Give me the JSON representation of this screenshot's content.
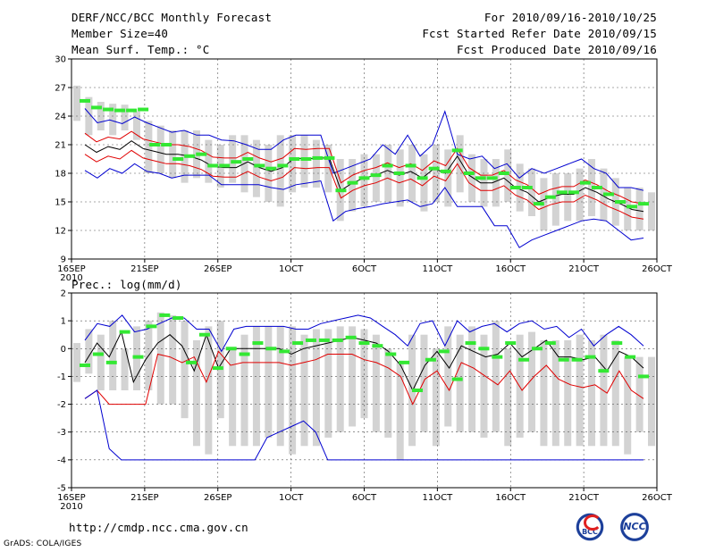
{
  "header": {
    "title": "DERF/NCC/BCC Monthly Forecast",
    "member_size": "Member Size=40",
    "variable": "Mean Surf. Temp.: °C",
    "period": "For 2010/09/16-2010/10/25",
    "refer_date": "Fcst Started Refer Date 2010/09/15",
    "produced_date": "Fcst Produced Date 2010/09/16"
  },
  "panel2_label": "Prec.: log(mm/d)",
  "footer": {
    "url": "http://cmdp.ncc.cma.gov.cn",
    "grads": "GrADS: COLA/IGES",
    "logo_bcc": "BCC",
    "logo_ncc": "NCC"
  },
  "colors": {
    "ensemble_mean": "#000000",
    "spread": "#e00000",
    "extremes": "#0000d0",
    "obs_marker": "#33e833",
    "box": "#d3d3d3",
    "grid": "#555555"
  },
  "chart_data": [
    {
      "type": "line",
      "title": "Mean Surf. Temp.: °C",
      "x_start_day": 1,
      "x_tick_days": [
        1,
        6,
        11,
        16,
        21,
        26,
        31,
        36,
        41
      ],
      "x_tick_labels": [
        "16SEP",
        "21SEP",
        "26SEP",
        "1OCT",
        "6OCT",
        "11OCT",
        "16OCT",
        "21OCT",
        "26OCT"
      ],
      "x_year_label": "2010",
      "ylim": [
        9,
        30
      ],
      "y_ticks": [
        9,
        12,
        15,
        18,
        21,
        24,
        27,
        30
      ],
      "series": [
        {
          "name": "max",
          "values": [
            18.3,
            17.5,
            18.5,
            18.0,
            19.0,
            18.2,
            18.0,
            17.5,
            17.8,
            17.8,
            17.8,
            16.8,
            16.8,
            16.8,
            16.8,
            16.5,
            16.3,
            16.8,
            17.0,
            17.2,
            13.0,
            14.0,
            14.3,
            14.5,
            14.8,
            15.0,
            15.2,
            14.5,
            14.8,
            16.5,
            14.5,
            14.5,
            14.5,
            12.5,
            12.5,
            10.2,
            11.0,
            11.5,
            12.0,
            12.5,
            13.0,
            13.2,
            13.0,
            12.0,
            11.0,
            11.2
          ]
        },
        {
          "name": "max",
          "values": [
            24.8,
            23.3,
            23.6,
            23.2,
            23.9,
            23.3,
            22.8,
            22.3,
            22.5,
            22.0,
            22.0,
            21.5,
            21.4,
            21.0,
            20.5,
            20.5,
            21.5,
            22.0,
            22.0,
            22.0,
            18.0,
            18.5,
            19.0,
            19.5,
            21.0,
            20.0,
            22.0,
            19.8,
            21.0,
            24.5,
            20.0,
            19.5,
            19.8,
            18.5,
            19.0,
            17.5,
            18.5,
            18.0,
            18.5,
            19.0,
            19.5,
            18.5,
            18.0,
            16.5,
            16.5,
            16.2
          ]
        },
        {
          "name": "ensemble mean",
          "values": [
            21.0,
            20.2,
            20.8,
            20.5,
            21.4,
            20.6,
            20.3,
            20.0,
            20.0,
            19.8,
            19.4,
            18.7,
            18.6,
            18.6,
            19.2,
            18.6,
            18.2,
            18.6,
            19.6,
            19.5,
            19.6,
            19.6,
            16.2,
            17.0,
            17.5,
            17.8,
            18.3,
            17.8,
            18.2,
            17.5,
            18.5,
            18.0,
            19.8,
            17.8,
            17.0,
            17.0,
            17.5,
            16.5,
            16.0,
            15.0,
            15.5,
            15.8,
            15.8,
            16.5,
            16.0,
            15.3,
            14.8,
            14.2,
            14.0
          ]
        },
        {
          "name": "upper",
          "values": [
            22.2,
            21.3,
            21.8,
            21.6,
            22.4,
            21.6,
            21.3,
            21.0,
            21.0,
            20.8,
            20.4,
            19.7,
            19.6,
            19.6,
            20.2,
            19.6,
            19.2,
            19.6,
            20.6,
            20.5,
            20.6,
            20.6,
            17.0,
            17.8,
            18.3,
            18.6,
            19.1,
            18.6,
            19.0,
            18.3,
            19.3,
            18.8,
            20.6,
            18.6,
            17.8,
            17.8,
            18.3,
            17.3,
            16.8,
            15.8,
            16.3,
            16.6,
            16.6,
            17.3,
            16.8,
            16.1,
            15.6,
            15.0,
            14.8
          ]
        },
        {
          "name": "lower",
          "values": [
            20.0,
            19.2,
            19.8,
            19.5,
            20.4,
            19.6,
            19.3,
            19.0,
            19.0,
            18.8,
            18.4,
            17.7,
            17.6,
            17.6,
            18.2,
            17.6,
            17.2,
            17.6,
            18.6,
            18.5,
            18.6,
            18.6,
            15.4,
            16.2,
            16.7,
            17.0,
            17.5,
            17.0,
            17.4,
            16.7,
            17.7,
            17.2,
            19.0,
            17.0,
            16.2,
            16.2,
            16.7,
            15.7,
            15.2,
            14.2,
            14.7,
            15.0,
            15.0,
            15.7,
            15.2,
            14.5,
            14.0,
            13.4,
            13.2
          ]
        }
      ],
      "observed_markers": [
        25.6,
        24.9,
        24.7,
        24.6,
        24.6,
        24.7,
        21.0,
        21.0,
        19.5,
        19.8,
        20.0,
        18.8,
        18.8,
        19.2,
        19.5,
        18.8,
        18.5,
        18.8,
        19.5,
        19.5,
        19.6,
        19.6,
        16.2,
        17.0,
        17.5,
        17.8,
        18.8,
        18.0,
        18.8,
        17.5,
        18.5,
        18.2,
        20.4,
        18.0,
        17.5,
        17.5,
        18.0,
        16.5,
        16.5,
        14.8,
        15.5,
        16.0,
        16.0,
        17.0,
        16.5,
        15.8,
        15.0,
        14.5,
        14.8
      ],
      "box_ranges": [
        [
          23.5,
          27.2
        ],
        [
          22.0,
          26.0
        ],
        [
          22.5,
          25.5
        ],
        [
          22.0,
          25.3
        ],
        [
          22.5,
          25.2
        ],
        [
          21.5,
          24.5
        ],
        [
          18.0,
          23.5
        ],
        [
          18.0,
          23.0
        ],
        [
          17.5,
          22.5
        ],
        [
          17.0,
          22.5
        ],
        [
          17.5,
          22.5
        ],
        [
          17.0,
          21.5
        ],
        [
          16.5,
          21.0
        ],
        [
          17.0,
          22.0
        ],
        [
          16.0,
          22.0
        ],
        [
          15.5,
          21.5
        ],
        [
          15.0,
          21.0
        ],
        [
          14.5,
          22.0
        ],
        [
          16.0,
          22.0
        ],
        [
          16.5,
          22.0
        ],
        [
          16.5,
          21.5
        ],
        [
          16.0,
          21.0
        ],
        [
          13.0,
          19.5
        ],
        [
          14.0,
          19.5
        ],
        [
          14.5,
          20.0
        ],
        [
          15.0,
          20.0
        ],
        [
          15.0,
          21.0
        ],
        [
          14.5,
          20.5
        ],
        [
          15.0,
          21.0
        ],
        [
          14.0,
          20.0
        ],
        [
          15.0,
          21.0
        ],
        [
          14.5,
          20.5
        ],
        [
          16.0,
          22.0
        ],
        [
          15.0,
          20.0
        ],
        [
          14.5,
          19.5
        ],
        [
          14.5,
          19.5
        ],
        [
          15.0,
          20.5
        ],
        [
          14.0,
          19.0
        ],
        [
          13.5,
          18.5
        ],
        [
          12.0,
          17.5
        ],
        [
          12.5,
          18.0
        ],
        [
          13.0,
          18.0
        ],
        [
          13.0,
          18.5
        ],
        [
          13.5,
          19.5
        ],
        [
          13.0,
          18.5
        ],
        [
          12.5,
          17.5
        ],
        [
          12.0,
          16.5
        ],
        [
          12.0,
          16.5
        ],
        [
          12.0,
          16.0
        ]
      ]
    },
    {
      "type": "line",
      "title": "Prec.: log(mm/d)",
      "x_start_day": 1,
      "x_tick_days": [
        1,
        6,
        11,
        16,
        21,
        26,
        31,
        36,
        41
      ],
      "x_tick_labels": [
        "16SEP",
        "21SEP",
        "26SEP",
        "1OCT",
        "6OCT",
        "11OCT",
        "16OCT",
        "21OCT",
        "26OCT"
      ],
      "x_year_label": "2010",
      "ylim": [
        -5,
        2
      ],
      "y_ticks": [
        -5,
        -4,
        -3,
        -2,
        -1,
        0,
        1,
        2
      ],
      "series": [
        {
          "name": "max",
          "values": [
            0.3,
            0.9,
            0.8,
            1.2,
            0.6,
            0.7,
            0.9,
            1.1,
            1.1,
            0.7,
            0.7,
            -0.1,
            0.7,
            0.8,
            0.8,
            0.8,
            0.8,
            0.7,
            0.7,
            0.9,
            1.0,
            1.1,
            1.2,
            1.1,
            0.8,
            0.5,
            0.1,
            0.9,
            1.0,
            0.1,
            1.0,
            0.6,
            0.8,
            0.9,
            0.6,
            0.9,
            1.0,
            0.7,
            0.8,
            0.4,
            0.7,
            0.1,
            0.5,
            0.8,
            0.5,
            0.1
          ]
        },
        {
          "name": "ensemble mean",
          "values": [
            -0.5,
            0.2,
            -0.3,
            0.6,
            -1.2,
            -0.4,
            0.2,
            0.5,
            0.1,
            -0.8,
            0.5,
            -0.7,
            0.0,
            0.0,
            0.0,
            0.0,
            0.0,
            -0.2,
            0.0,
            0.1,
            0.2,
            0.3,
            0.4,
            0.3,
            0.2,
            -0.1,
            -0.6,
            -1.5,
            -0.6,
            -0.1,
            -0.7,
            0.1,
            -0.1,
            -0.3,
            -0.2,
            0.2,
            -0.3,
            0.0,
            0.3,
            -0.3,
            -0.3,
            -0.4,
            -0.3,
            -0.8,
            -0.1,
            -0.3,
            -0.7
          ]
        },
        {
          "name": "lower",
          "values": [
            -1.8,
            -1.5,
            -2.0,
            -2.0,
            -2.0,
            -2.0,
            -0.2,
            -0.3,
            -0.5,
            -0.3,
            -1.2,
            -0.1,
            -0.6,
            -0.5,
            -0.5,
            -0.5,
            -0.5,
            -0.6,
            -0.5,
            -0.4,
            -0.2,
            -0.2,
            -0.2,
            -0.4,
            -0.5,
            -0.7,
            -1.0,
            -2.0,
            -1.1,
            -0.8,
            -1.5,
            -0.5,
            -0.7,
            -1.0,
            -1.3,
            -0.8,
            -1.5,
            -1.0,
            -0.6,
            -1.1,
            -1.3,
            -1.4,
            -1.3,
            -1.6,
            -0.8,
            -1.5,
            -1.8
          ]
        },
        {
          "name": "min",
          "values": [
            -1.8,
            -1.5,
            -3.6,
            -4.0,
            -4.0,
            -4.0,
            -4.0,
            -4.0,
            -4.0,
            -4.0,
            -4.0,
            -4.0,
            -4.0,
            -4.0,
            -4.0,
            -3.2,
            -3.0,
            -2.8,
            -2.6,
            -3.0,
            -4.0,
            -4.0,
            -4.0,
            -4.0,
            -4.0,
            -4.0,
            -4.0,
            -4.0,
            -4.0,
            -4.0,
            -4.0,
            -4.0,
            -4.0,
            -4.0,
            -4.0,
            -4.0,
            -4.0,
            -4.0,
            -4.0,
            -4.0,
            -4.0,
            -4.0,
            -4.0,
            -4.0,
            -4.0,
            -4.0,
            -4.0
          ]
        }
      ],
      "observed_markers": [
        -0.6,
        -0.2,
        -0.5,
        0.6,
        -0.3,
        0.8,
        1.2,
        1.1,
        -0.5,
        0.5,
        -0.7,
        0.0,
        -0.2,
        0.2,
        0.0,
        -0.1,
        0.2,
        0.3,
        0.3,
        0.3,
        0.4,
        0.2,
        0.1,
        -0.2,
        -0.5,
        -1.5,
        -0.4,
        -0.1,
        -1.1,
        0.2,
        0.0,
        -0.3,
        0.2,
        -0.4,
        0.0,
        0.2,
        -0.4,
        -0.4,
        -0.3,
        -0.8,
        0.2,
        -0.3,
        -1.0
      ],
      "box_ranges": [
        [
          -1.2,
          0.2
        ],
        [
          -0.9,
          0.7
        ],
        [
          -1.5,
          0.5
        ],
        [
          -1.5,
          1.0
        ],
        [
          -1.5,
          0.0
        ],
        [
          -1.5,
          0.8
        ],
        [
          -1.5,
          1.0
        ],
        [
          -2.0,
          1.3
        ],
        [
          -2.0,
          1.2
        ],
        [
          -2.5,
          1.0
        ],
        [
          -3.5,
          0.3
        ],
        [
          -3.8,
          0.8
        ],
        [
          -2.5,
          1.0
        ],
        [
          -3.5,
          0.0
        ],
        [
          -3.5,
          0.5
        ],
        [
          -3.5,
          0.8
        ],
        [
          -3.2,
          0.8
        ],
        [
          -3.5,
          0.8
        ],
        [
          -3.8,
          0.8
        ],
        [
          -3.5,
          0.5
        ],
        [
          -3.5,
          0.7
        ],
        [
          -3.2,
          0.7
        ],
        [
          -3.0,
          0.8
        ],
        [
          -2.8,
          0.8
        ],
        [
          -2.5,
          0.7
        ],
        [
          -3.0,
          0.5
        ],
        [
          -3.2,
          0.0
        ],
        [
          -4.0,
          -0.5
        ],
        [
          -3.5,
          0.5
        ],
        [
          -3.0,
          0.5
        ],
        [
          -3.5,
          0.0
        ],
        [
          -2.8,
          0.8
        ],
        [
          -3.0,
          0.5
        ],
        [
          -3.0,
          0.8
        ],
        [
          -3.2,
          0.5
        ],
        [
          -3.0,
          1.0
        ],
        [
          -3.5,
          0.0
        ],
        [
          -3.2,
          0.5
        ],
        [
          -3.0,
          0.6
        ],
        [
          -3.5,
          0.3
        ],
        [
          -3.5,
          0.3
        ],
        [
          -3.5,
          0.3
        ],
        [
          -3.5,
          0.5
        ],
        [
          -3.5,
          0.3
        ],
        [
          -3.5,
          0.5
        ],
        [
          -3.5,
          0.3
        ],
        [
          -3.8,
          -0.3
        ],
        [
          -3.0,
          -0.3
        ],
        [
          -3.5,
          -0.3
        ]
      ]
    }
  ]
}
